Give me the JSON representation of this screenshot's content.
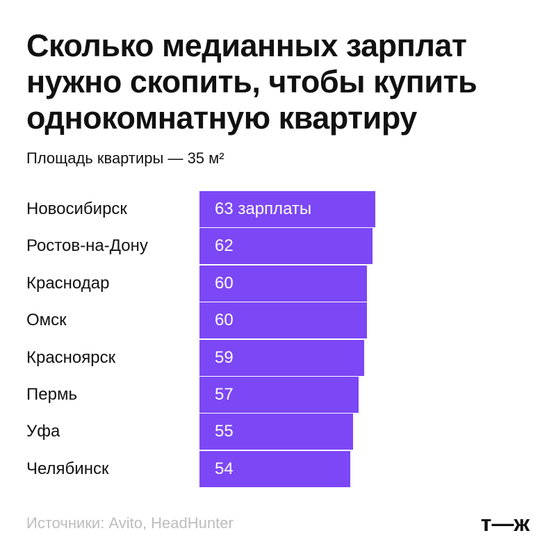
{
  "title_lines": [
    "Сколько медианных зарплат",
    "нужно скопить, чтобы купить",
    "однокомнатную квартиру"
  ],
  "subtitle": "Площадь квартиры — 35 м²",
  "chart_data": {
    "type": "bar",
    "orientation": "horizontal",
    "title": "Сколько медианных зарплат нужно скопить, чтобы купить однокомнатную квартиру",
    "subtitle": "Площадь квартиры — 35 м²",
    "categories": [
      "Новосибирск",
      "Ростов-на-Дону",
      "Краснодар",
      "Омск",
      "Красноярск",
      "Пермь",
      "Уфа",
      "Челябинск"
    ],
    "values": [
      63,
      62,
      60,
      60,
      59,
      57,
      55,
      54
    ],
    "value_labels": [
      "63 зарплаты",
      "62",
      "60",
      "60",
      "59",
      "57",
      "55",
      "54"
    ],
    "unit": "зарплаты",
    "xlim": [
      0,
      63
    ],
    "grid": false,
    "bar_color": "#7c47f5"
  },
  "footer": {
    "source": "Источники: Avito, HeadHunter",
    "logo": "т—ж"
  }
}
